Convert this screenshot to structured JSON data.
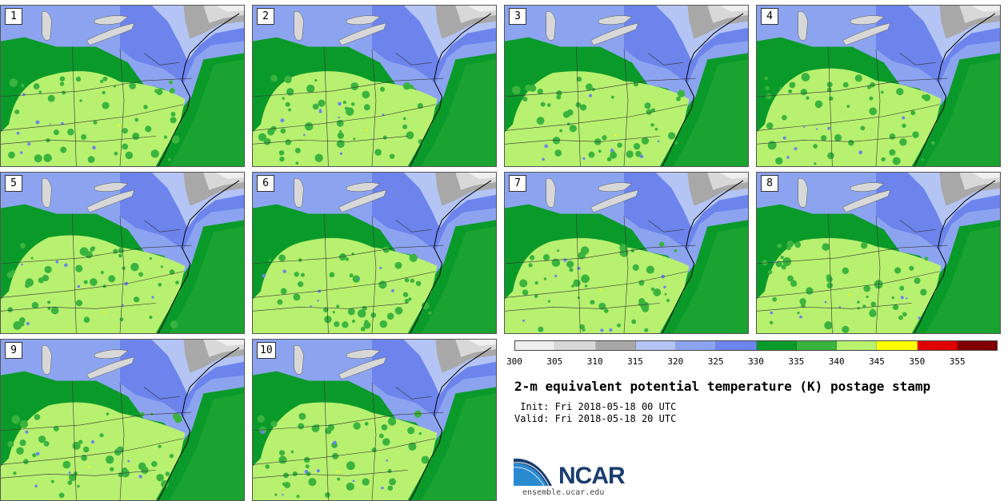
{
  "stamps": [
    {
      "label": "1"
    },
    {
      "label": "2"
    },
    {
      "label": "3"
    },
    {
      "label": "4"
    },
    {
      "label": "5"
    },
    {
      "label": "6"
    },
    {
      "label": "7"
    },
    {
      "label": "8"
    },
    {
      "label": "9"
    },
    {
      "label": "10"
    }
  ],
  "colorbar": {
    "colors": [
      "#efefef",
      "#d8d8d8",
      "#a8a8a8",
      "#b4c4f4",
      "#8ca4f0",
      "#6c84ec",
      "#0a9a2a",
      "#3ab43e",
      "#b8f070",
      "#ffff00",
      "#e00000",
      "#800000"
    ],
    "ticks": [
      "300",
      "305",
      "310",
      "315",
      "320",
      "325",
      "330",
      "335",
      "340",
      "345",
      "350",
      "355"
    ]
  },
  "title": "2-m equivalent potential temperature (K) postage stamp",
  "init": " Init: Fri 2018-05-18 00 UTC",
  "valid": "Valid: Fri 2018-05-18 20 UTC",
  "logo": {
    "text": "NCAR"
  },
  "url": "ensemble.ucar.edu"
}
